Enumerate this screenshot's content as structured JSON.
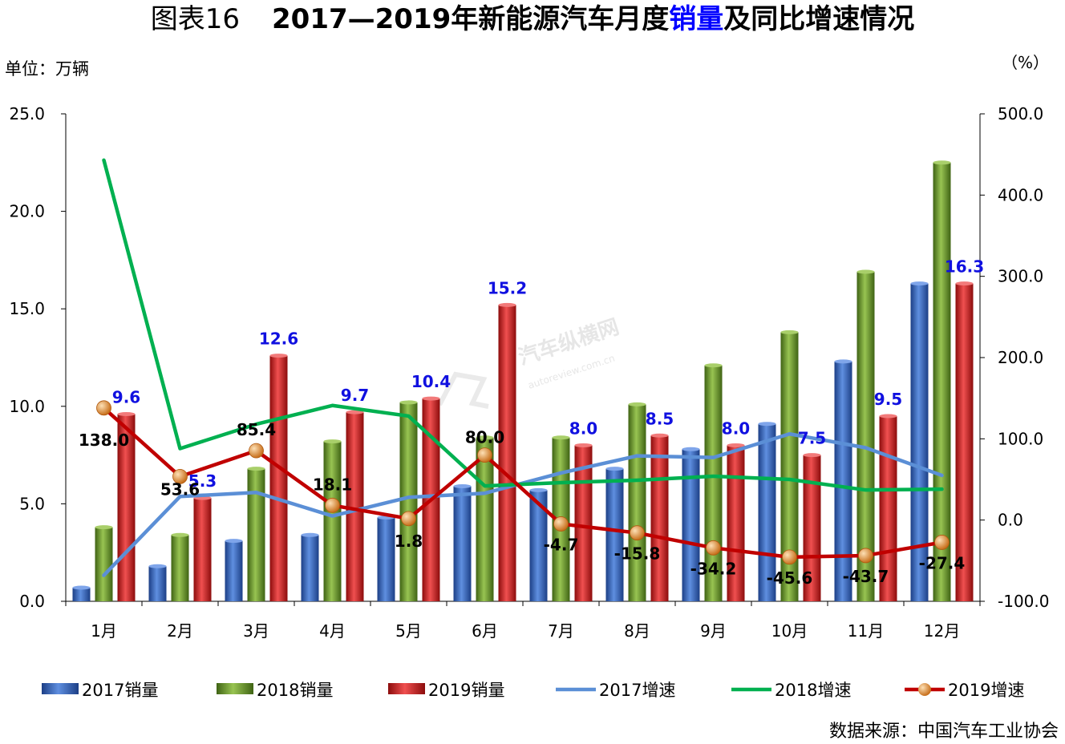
{
  "header": {
    "figure_label": "图表16",
    "title_prefix": "2017—2019年新能源汽车月度",
    "title_highlight": "销量",
    "title_suffix": "及同比增速情况"
  },
  "unit_left": "单位：万辆",
  "unit_right": "（%）",
  "source": "数据来源：中国汽车工业协会",
  "watermark": {
    "name": "汽车纵横网",
    "url": "autoreview.com.cn"
  },
  "colors": {
    "bar2017": "#2e62b8",
    "bar2018": "#6e9a2c",
    "bar2019": "#d42424",
    "line2017": "#5b8fd6",
    "line2018": "#00b050",
    "line2019": "#c00000",
    "marker2019": "#e8902e"
  },
  "chart_data": {
    "type": "bar",
    "categories": [
      "1月",
      "2月",
      "3月",
      "4月",
      "5月",
      "6月",
      "7月",
      "8月",
      "9月",
      "10月",
      "11月",
      "12月"
    ],
    "left_axis": {
      "ylim": [
        0,
        25
      ],
      "ticks": [
        "0.0",
        "5.0",
        "10.0",
        "15.0",
        "20.0",
        "25.0"
      ]
    },
    "right_axis": {
      "ylim": [
        -100,
        500
      ],
      "ticks": [
        "-100.0",
        "0.0",
        "100.0",
        "200.0",
        "300.0",
        "400.0",
        "500.0"
      ]
    },
    "bar_series": [
      {
        "name": "2017销量",
        "values": [
          0.7,
          1.8,
          3.1,
          3.4,
          4.3,
          5.9,
          5.7,
          6.8,
          7.8,
          9.1,
          12.3,
          16.3
        ]
      },
      {
        "name": "2018销量",
        "values": [
          3.8,
          3.4,
          6.8,
          8.2,
          10.2,
          8.4,
          8.4,
          10.1,
          12.1,
          13.8,
          16.9,
          22.5
        ]
      },
      {
        "name": "2019销量",
        "values": [
          9.6,
          5.3,
          12.6,
          9.7,
          10.4,
          15.2,
          8.0,
          8.5,
          8.0,
          7.5,
          9.5,
          16.3
        ],
        "labels": [
          "9.6",
          "5.3",
          "12.6",
          "9.7",
          "10.4",
          "15.2",
          "8.0",
          "8.5",
          "8.0",
          "7.5",
          "9.5",
          "16.3"
        ]
      }
    ],
    "line_series": [
      {
        "name": "2017增速",
        "axis": "right",
        "values": [
          -68,
          29,
          34,
          5,
          28,
          33,
          58,
          79,
          77,
          106,
          89,
          55
        ]
      },
      {
        "name": "2018增速",
        "axis": "right",
        "values": [
          443,
          88,
          118,
          141,
          128,
          42,
          46,
          49,
          54,
          50,
          37,
          38
        ]
      },
      {
        "name": "2019增速",
        "axis": "right",
        "values": [
          138.0,
          53.6,
          85.4,
          18.1,
          1.8,
          80.0,
          -4.7,
          -15.8,
          -34.2,
          -45.6,
          -43.7,
          -27.4
        ],
        "labels": [
          "138.0",
          "53.6",
          "85.4",
          "18.1",
          "1.8",
          "80.0",
          "-4.7",
          "-15.8",
          "-34.2",
          "-45.6",
          "-43.7",
          "-27.4"
        ]
      }
    ],
    "legend": [
      "2017销量",
      "2018销量",
      "2019销量",
      "2017增速",
      "2018增速",
      "2019增速"
    ],
    "legend_position": "bottom"
  }
}
